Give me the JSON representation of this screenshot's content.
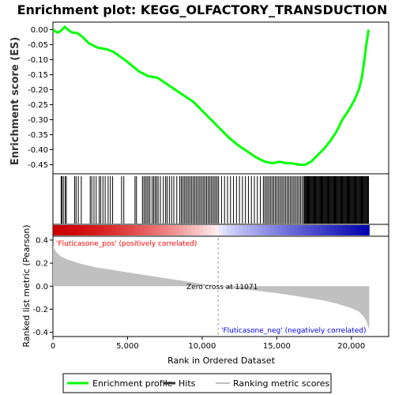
{
  "chart_data": {
    "title": "Enrichment plot: KEGG_OLFACTORY_TRANSDUCTION",
    "xlabel": "Rank in Ordered Dataset",
    "panels": [
      {
        "id": "enrichment",
        "type": "line",
        "ylabel": "Enrichment score (ES)",
        "ylim": [
          -0.475,
          0.02
        ],
        "yticks": [
          "0.00",
          "-0.05",
          "-0.10",
          "-0.15",
          "-0.20",
          "-0.25",
          "-0.30",
          "-0.35",
          "-0.40",
          "-0.45"
        ],
        "ytick_values": [
          0,
          -0.05,
          -0.1,
          -0.15,
          -0.2,
          -0.25,
          -0.3,
          -0.35,
          -0.4,
          -0.45
        ],
        "series": [
          {
            "name": "Enrichment profile",
            "color": "#00ff00",
            "x": [
              0,
              300,
              500,
              800,
              1000,
              1300,
              1600,
              2000,
              2400,
              3000,
              3600,
              4100,
              4800,
              5300,
              5800,
              6400,
              7000,
              7600,
              8200,
              8800,
              9400,
              10000,
              10600,
              11200,
              11800,
              12400,
              13000,
              13600,
              14200,
              14700,
              15200,
              15600,
              16000,
              16500,
              16900,
              17300,
              17700,
              18200,
              18600,
              19000,
              19400,
              19800,
              20200,
              20500,
              20700,
              20850,
              21000,
              21150
            ],
            "y": [
              0.0,
              -0.01,
              -0.005,
              0.01,
              0.0,
              -0.01,
              -0.01,
              -0.025,
              -0.045,
              -0.06,
              -0.065,
              -0.075,
              -0.1,
              -0.12,
              -0.14,
              -0.155,
              -0.16,
              -0.18,
              -0.2,
              -0.22,
              -0.24,
              -0.27,
              -0.3,
              -0.33,
              -0.36,
              -0.385,
              -0.405,
              -0.425,
              -0.44,
              -0.445,
              -0.44,
              -0.445,
              -0.445,
              -0.45,
              -0.45,
              -0.44,
              -0.42,
              -0.395,
              -0.37,
              -0.34,
              -0.3,
              -0.27,
              -0.235,
              -0.2,
              -0.16,
              -0.11,
              -0.05,
              0.0
            ]
          }
        ]
      },
      {
        "id": "hits",
        "type": "scatter",
        "series": [
          {
            "name": "Hits",
            "color": "#000000",
            "x": [
              550,
              600,
              700,
              820,
              900,
              1450,
              1550,
              1700,
              1900,
              2500,
              2600,
              2750,
              2900,
              3100,
              3200,
              3350,
              3500,
              3700,
              3850,
              4000,
              4600,
              4750,
              5500,
              5600,
              6000,
              6100,
              6200,
              6300,
              6400,
              6500,
              6650,
              6750,
              6850,
              6950,
              7050,
              7200,
              7400,
              7550,
              7650,
              7800,
              7950,
              8100,
              8300,
              8500,
              8600,
              8700,
              8800,
              8900,
              9000,
              9100,
              9200,
              9300,
              9400,
              9500,
              9600,
              9700,
              9800,
              9900,
              10000,
              10100,
              10200,
              10300,
              10400,
              10500,
              10600,
              10700,
              10800,
              10900,
              11000,
              11100,
              11300,
              11500,
              11700,
              11900,
              12100,
              12300,
              12500,
              12700,
              12900,
              13100,
              13300,
              13500,
              13700,
              13900,
              14100,
              14200,
              14300,
              14400,
              14500,
              14600,
              14700,
              14800,
              14900,
              15000,
              15100,
              15200,
              15300,
              15400,
              15500,
              15600,
              15700,
              15800,
              15900,
              16000,
              16100,
              16200,
              16300,
              16400,
              16500,
              16600,
              16700,
              16800,
              16850,
              16900,
              16950,
              17000,
              17050,
              17100,
              17150,
              17200,
              17250,
              17300,
              17350,
              17400,
              17450,
              17500,
              17550,
              17600,
              17650,
              17700,
              17750,
              17800,
              17850,
              17900,
              17950,
              18000,
              18050,
              18100,
              18150,
              18200,
              18250,
              18300,
              18350,
              18400,
              18450,
              18500,
              18550,
              18600,
              18650,
              18700,
              18750,
              18800,
              18850,
              18900,
              18950,
              19000,
              19050,
              19100,
              19150,
              19200,
              19250,
              19300,
              19350,
              19400,
              19450,
              19500,
              19550,
              19600,
              19650,
              19700,
              19750,
              19800,
              19850,
              19900,
              19950,
              20000,
              20050,
              20100,
              20150,
              20200,
              20250,
              20300,
              20350,
              20400,
              20450,
              20500,
              20550,
              20600,
              20650,
              20700,
              20750,
              20800,
              20850,
              20900,
              20950,
              21000,
              21050,
              21100,
              21150
            ]
          }
        ]
      },
      {
        "id": "ranked_metric",
        "type": "area",
        "ylabel": "Ranked list metric (Pearson)",
        "ylim": [
          -0.43,
          0.42
        ],
        "yticks": [
          "0.4",
          "0.2",
          "0.0",
          "-0.2",
          "-0.4"
        ],
        "ytick_values": [
          0.4,
          0.2,
          0.0,
          -0.2,
          -0.4
        ],
        "series": [
          {
            "name": "Ranking metric scores",
            "color": "#c0c0c0",
            "x": [
              0,
              200,
              500,
              1000,
              2000,
              3000,
              4000,
              5000,
              6000,
              7000,
              8000,
              9000,
              10000,
              11071,
              12000,
              13000,
              14000,
              15000,
              16000,
              17000,
              18000,
              19000,
              20000,
              20500,
              20800,
              21000,
              21100,
              21200
            ],
            "y": [
              0.35,
              0.3,
              0.26,
              0.23,
              0.19,
              0.16,
              0.14,
              0.12,
              0.1,
              0.08,
              0.06,
              0.04,
              0.02,
              0.0,
              -0.02,
              -0.03,
              -0.045,
              -0.06,
              -0.08,
              -0.1,
              -0.12,
              -0.15,
              -0.19,
              -0.22,
              -0.26,
              -0.3,
              -0.34,
              -0.38
            ]
          }
        ],
        "annotations": {
          "zero_cross": "Zero cross at 11071",
          "zero_cross_x": 11071,
          "pos_label": "'Fluticasone_pos' (positively correlated)",
          "neg_label": "'Fluticasone_neg' (negatively correlated)",
          "pos_color": "#ff0000",
          "neg_color": "#0000ff"
        }
      }
    ],
    "xlim": [
      0,
      22500
    ],
    "xticks": [
      "0",
      "5,000",
      "10,000",
      "15,000",
      "20,000"
    ],
    "xtick_values": [
      0,
      5000,
      10000,
      15000,
      20000
    ],
    "n_genes": 21200,
    "legend": {
      "placement": "bottom",
      "items": [
        {
          "name": "Enrichment profile",
          "color": "#00ff00"
        },
        {
          "name": "Hits",
          "color": "#333333"
        },
        {
          "name": "Ranking metric scores",
          "color": "#c0c0c0"
        }
      ]
    }
  }
}
